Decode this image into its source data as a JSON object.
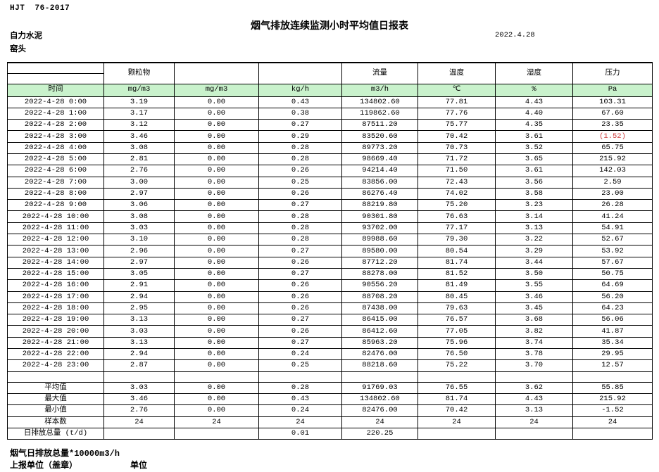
{
  "page": {
    "standard": "HJT  76-2017",
    "title": "烟气排放连续监测小时平均值日报表",
    "company": "自力水泥",
    "station": "窑头",
    "date": "2022.4.28"
  },
  "table": {
    "group_headers": [
      "",
      "颗粒物",
      "",
      "",
      "流量",
      "温度",
      "湿度",
      "压力"
    ],
    "unit_row": [
      "时间",
      "mg/m3",
      "mg/m3",
      "kg/h",
      "m3/h",
      "℃",
      "%",
      "Pa"
    ],
    "rows": [
      [
        "2022-4-28 0:00",
        "3.19",
        "0.00",
        "0.43",
        "134802.60",
        "77.81",
        "4.43",
        "103.31"
      ],
      [
        "2022-4-28 1:00",
        "3.17",
        "0.00",
        "0.38",
        "119862.60",
        "77.76",
        "4.40",
        "67.60"
      ],
      [
        "2022-4-28 2:00",
        "3.12",
        "0.00",
        "0.27",
        "87511.20",
        "75.77",
        "4.35",
        "23.35"
      ],
      [
        "2022-4-28 3:00",
        "3.46",
        "0.00",
        "0.29",
        "83520.60",
        "70.42",
        "3.61",
        "(1.52)"
      ],
      [
        "2022-4-28 4:00",
        "3.08",
        "0.00",
        "0.28",
        "89773.20",
        "70.73",
        "3.52",
        "65.75"
      ],
      [
        "2022-4-28 5:00",
        "2.81",
        "0.00",
        "0.28",
        "98669.40",
        "71.72",
        "3.65",
        "215.92"
      ],
      [
        "2022-4-28 6:00",
        "2.76",
        "0.00",
        "0.26",
        "94214.40",
        "71.50",
        "3.61",
        "142.03"
      ],
      [
        "2022-4-28 7:00",
        "3.00",
        "0.00",
        "0.25",
        "83856.00",
        "72.43",
        "3.56",
        "2.59"
      ],
      [
        "2022-4-28 8:00",
        "2.97",
        "0.00",
        "0.26",
        "86276.40",
        "74.02",
        "3.58",
        "23.00"
      ],
      [
        "2022-4-28 9:00",
        "3.06",
        "0.00",
        "0.27",
        "88219.80",
        "75.20",
        "3.23",
        "26.28"
      ],
      [
        "2022-4-28 10:00",
        "3.08",
        "0.00",
        "0.28",
        "90301.80",
        "76.63",
        "3.14",
        "41.24"
      ],
      [
        "2022-4-28 11:00",
        "3.03",
        "0.00",
        "0.28",
        "93702.00",
        "77.17",
        "3.13",
        "54.91"
      ],
      [
        "2022-4-28 12:00",
        "3.10",
        "0.00",
        "0.28",
        "89988.60",
        "79.30",
        "3.22",
        "52.67"
      ],
      [
        "2022-4-28 13:00",
        "2.96",
        "0.00",
        "0.27",
        "89580.00",
        "80.54",
        "3.29",
        "53.92"
      ],
      [
        "2022-4-28 14:00",
        "2.97",
        "0.00",
        "0.26",
        "87712.20",
        "81.74",
        "3.44",
        "57.67"
      ],
      [
        "2022-4-28 15:00",
        "3.05",
        "0.00",
        "0.27",
        "88278.00",
        "81.52",
        "3.50",
        "50.75"
      ],
      [
        "2022-4-28 16:00",
        "2.91",
        "0.00",
        "0.26",
        "90556.20",
        "81.49",
        "3.55",
        "64.69"
      ],
      [
        "2022-4-28 17:00",
        "2.94",
        "0.00",
        "0.26",
        "88708.20",
        "80.45",
        "3.46",
        "56.20"
      ],
      [
        "2022-4-28 18:00",
        "2.95",
        "0.00",
        "0.26",
        "87438.00",
        "79.63",
        "3.45",
        "64.23"
      ],
      [
        "2022-4-28 19:00",
        "3.13",
        "0.00",
        "0.27",
        "86415.00",
        "76.57",
        "3.68",
        "56.06"
      ],
      [
        "2022-4-28 20:00",
        "3.03",
        "0.00",
        "0.26",
        "86412.60",
        "77.05",
        "3.82",
        "41.87"
      ],
      [
        "2022-4-28 21:00",
        "3.13",
        "0.00",
        "0.27",
        "85963.20",
        "75.96",
        "3.74",
        "35.34"
      ],
      [
        "2022-4-28 22:00",
        "2.94",
        "0.00",
        "0.24",
        "82476.00",
        "76.50",
        "3.78",
        "29.95"
      ],
      [
        "2022-4-28 23:00",
        "2.87",
        "0.00",
        "0.25",
        "88218.60",
        "75.22",
        "3.70",
        "12.57"
      ]
    ],
    "summary_rows": [
      [
        "平均值",
        "3.03",
        "0.00",
        "0.28",
        "91769.03",
        "76.55",
        "3.62",
        "55.85"
      ],
      [
        "最大值",
        "3.46",
        "0.00",
        "0.43",
        "134802.60",
        "81.74",
        "4.43",
        "215.92"
      ],
      [
        "最小值",
        "2.76",
        "0.00",
        "0.24",
        "82476.00",
        "70.42",
        "3.13",
        "-1.52"
      ],
      [
        "样本数",
        "24",
        "24",
        "24",
        "24",
        "24",
        "24",
        "24"
      ],
      [
        "日排放总量 (t/d)",
        "",
        "",
        "0.01",
        "220.25",
        "",
        "",
        ""
      ]
    ]
  },
  "footer": {
    "flow_note": "烟气日排放总量*10000m3/h",
    "report_unit_label": "上报单位（盖章）",
    "unit_label": "单位"
  },
  "colors": {
    "unit_row_bg": "#c9f2cc",
    "negative_red": "#d04040"
  }
}
